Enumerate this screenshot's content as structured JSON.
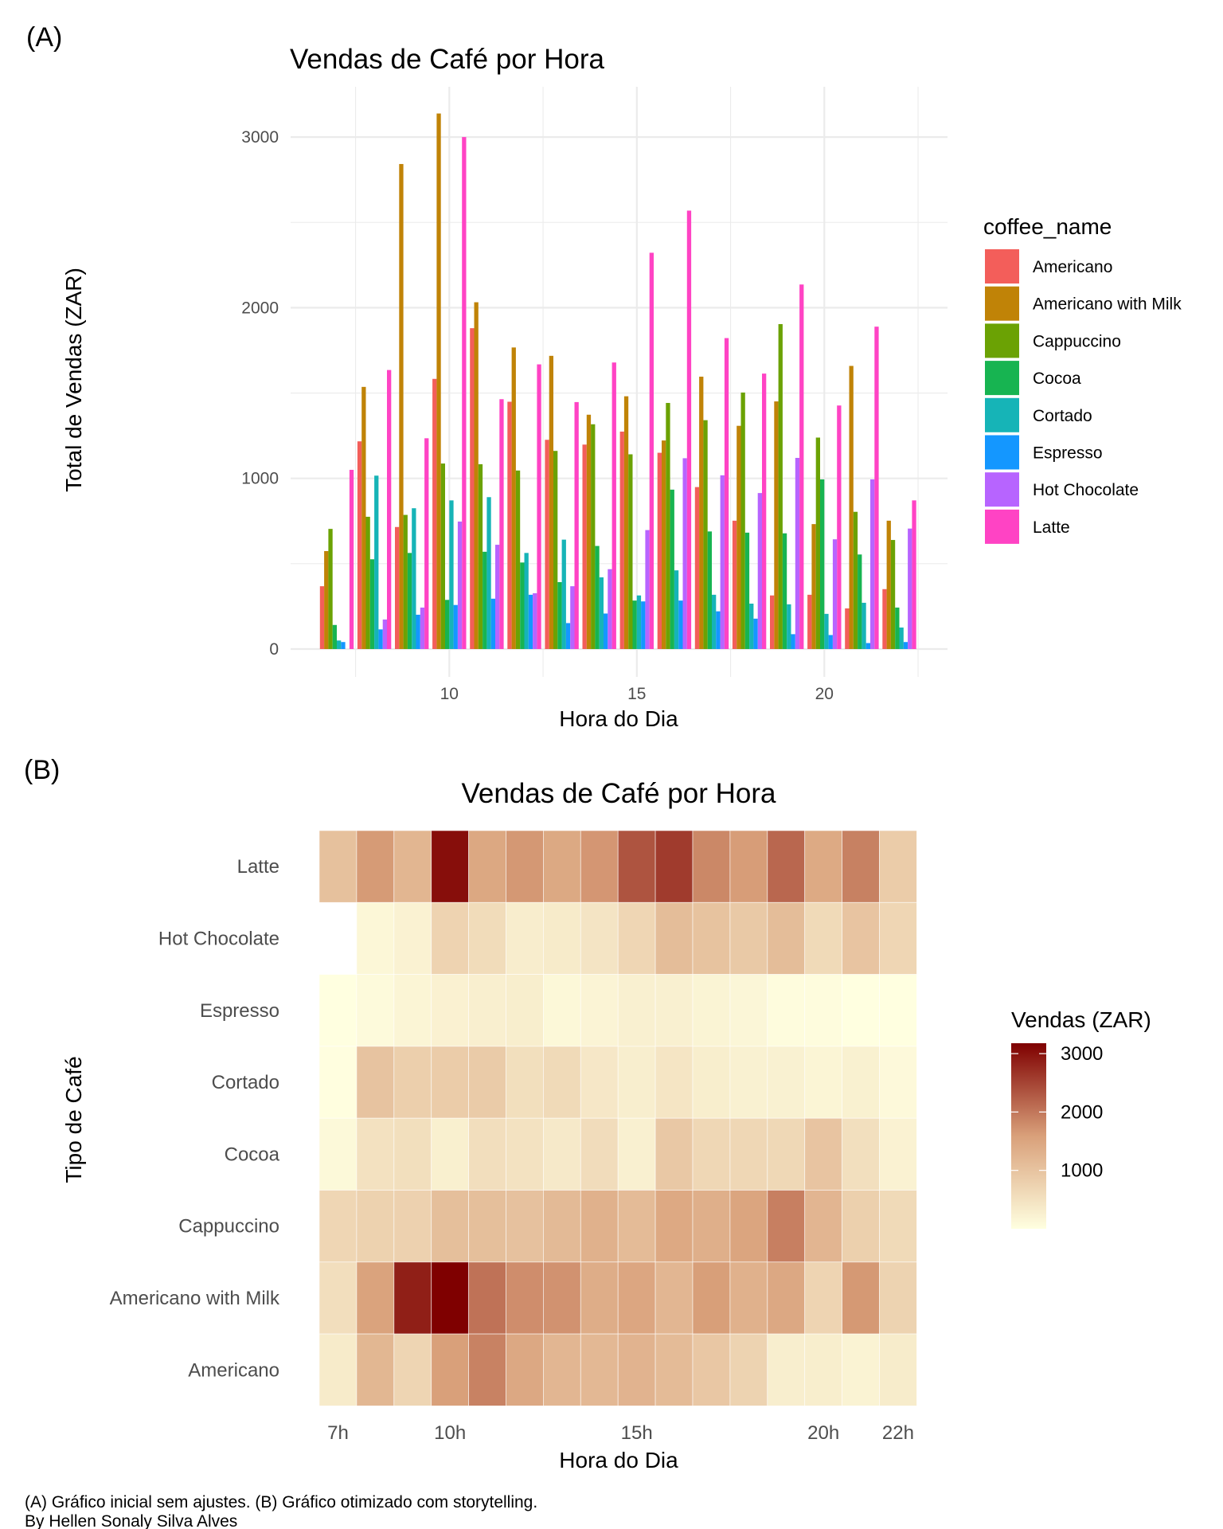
{
  "chart_data": [
    {
      "panel": "(A)",
      "type": "bar",
      "title": "Vendas de Café por Hora",
      "xlabel": "Hora do Dia",
      "ylabel": "Total de Vendas (ZAR)",
      "x": [
        7,
        8,
        9,
        10,
        11,
        12,
        13,
        14,
        15,
        16,
        17,
        18,
        19,
        20,
        21,
        22
      ],
      "xticks": [
        10,
        15,
        20
      ],
      "yticks": [
        0,
        1000,
        2000,
        3000
      ],
      "ylim": [
        0,
        3300
      ],
      "grid": true,
      "legend_title": "coffee_name",
      "legend_position": "right",
      "series": [
        {
          "name": "Americano",
          "color": "#F35E5A",
          "values": [
            368,
            1217,
            715,
            1583,
            1880,
            1449,
            1226,
            1198,
            1274,
            1150,
            949,
            752,
            314,
            318,
            238,
            351
          ]
        },
        {
          "name": "Americano with Milk",
          "color": "#C08307",
          "values": [
            574,
            1536,
            2842,
            3138,
            2032,
            1767,
            1718,
            1373,
            1481,
            1222,
            1596,
            1308,
            1451,
            732,
            1659,
            752
          ]
        },
        {
          "name": "Cappuccino",
          "color": "#6BA204",
          "values": [
            704,
            775,
            786,
            1087,
            1083,
            1046,
            1161,
            1317,
            1141,
            1442,
            1341,
            1503,
            1904,
            1239,
            804,
            639
          ]
        },
        {
          "name": "Cocoa",
          "color": "#17B451",
          "values": [
            141,
            526,
            563,
            288,
            570,
            507,
            392,
            604,
            284,
            934,
            689,
            682,
            678,
            994,
            554,
            243
          ]
        },
        {
          "name": "Cortado",
          "color": "#16B4B7",
          "values": [
            50,
            1016,
            825,
            871,
            890,
            563,
            641,
            420,
            314,
            461,
            318,
            266,
            262,
            206,
            271,
            126
          ]
        },
        {
          "name": "Espresso",
          "color": "#1497FF",
          "values": [
            41,
            115,
            201,
            258,
            295,
            318,
            152,
            208,
            279,
            284,
            221,
            178,
            87,
            82,
            35,
            41
          ]
        },
        {
          "name": "Hot Chocolate",
          "color": "#B764FF",
          "values": [
            null,
            173,
            243,
            747,
            611,
            327,
            368,
            468,
            697,
            1118,
            1018,
            914,
            1120,
            643,
            994,
            706
          ]
        },
        {
          "name": "Latte",
          "color": "#FF43C4",
          "values": [
            1050,
            1635,
            1235,
            3000,
            1464,
            1668,
            1447,
            1679,
            2322,
            2569,
            1822,
            1614,
            2136,
            1427,
            1889,
            871
          ]
        }
      ]
    },
    {
      "panel": "(B)",
      "type": "heatmap",
      "title": "Vendas de Café por Hora",
      "xlabel": "Hora do Dia",
      "ylabel": "Tipo de Café",
      "x": [
        7,
        8,
        9,
        10,
        11,
        12,
        13,
        14,
        15,
        16,
        17,
        18,
        19,
        20,
        21,
        22
      ],
      "xticks": [
        {
          "hour": 7,
          "label": "7h"
        },
        {
          "hour": 10,
          "label": "10h"
        },
        {
          "hour": 15,
          "label": "15h"
        },
        {
          "hour": 20,
          "label": "20h"
        },
        {
          "hour": 22,
          "label": "22h"
        }
      ],
      "y_order_top_to_bottom": [
        "Latte",
        "Hot Chocolate",
        "Espresso",
        "Cortado",
        "Cocoa",
        "Cappuccino",
        "Americano with Milk",
        "Americano"
      ],
      "value_source": "same values as panel (A) series",
      "legend_title": "Vendas (ZAR)",
      "legend_position": "right",
      "legend_ticks": [
        1000,
        2000,
        3000
      ],
      "color_scale": {
        "low": "#FFFFE0",
        "mid": "#D9A07A",
        "high": "#7F0000",
        "domain": [
          35,
          3138
        ]
      },
      "missing_color": "#FFFFFF"
    }
  ],
  "caption": {
    "line1": "(A) Gráfico inicial sem ajustes. (B) Gráfico otimizado com storytelling.",
    "line2": "By Hellen Sonaly Silva Alves"
  }
}
